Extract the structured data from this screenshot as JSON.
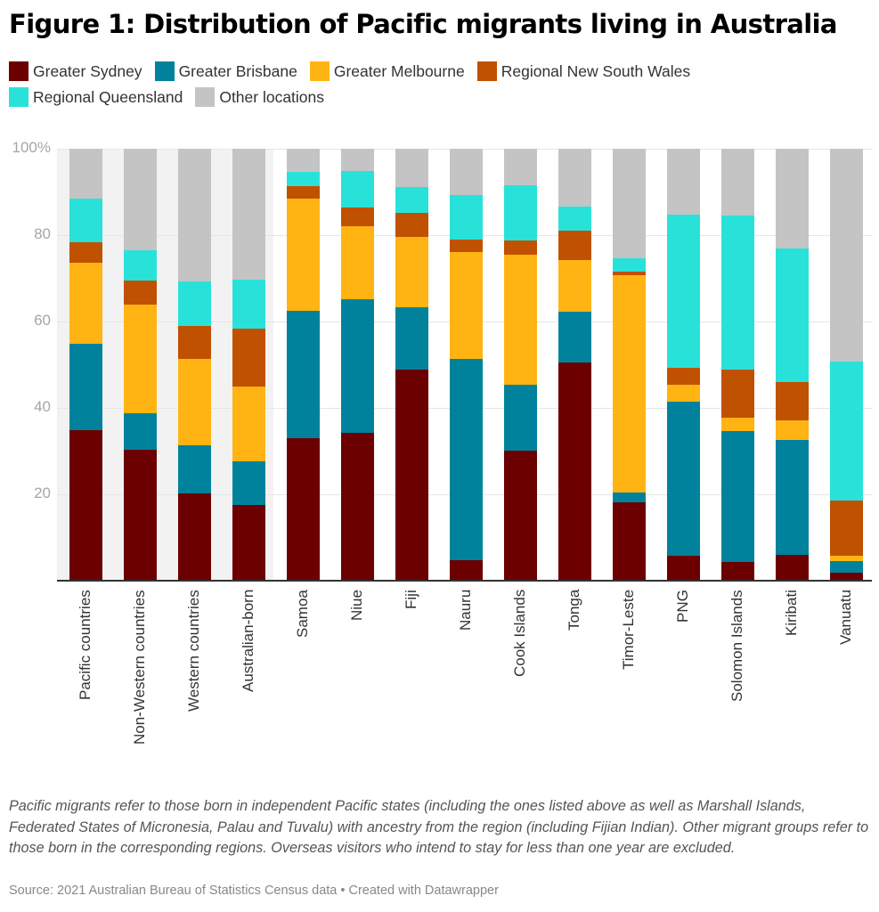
{
  "title": "Figure 1: Distribution of Pacific migrants living in Australia",
  "legend": [
    {
      "label": "Greater Sydney",
      "color": "#6c0000"
    },
    {
      "label": "Greater Brisbane",
      "color": "#00829c"
    },
    {
      "label": "Greater Melbourne",
      "color": "#ffb413"
    },
    {
      "label": "Regional New South Wales",
      "color": "#c05100"
    },
    {
      "label": "Regional Queensland",
      "color": "#28e2da"
    },
    {
      "label": "Other locations",
      "color": "#c4c4c4"
    }
  ],
  "y_axis": {
    "ticks": [
      "100%",
      "80",
      "60",
      "40",
      "20"
    ]
  },
  "footnote": "Pacific migrants refer to those born in independent Pacific states (including the ones listed above as well as Marshall Islands, Federated States of Micronesia, Palau and Tuvalu) with ancestry from the region (including Fijian Indian). Other migrant groups refer to those born in the corresponding regions. Overseas visitors who intend to stay for less than one year are excluded.",
  "source": "Source: 2021 Australian Bureau of Statistics Census data • Created with Datawrapper",
  "chart_data": {
    "type": "bar",
    "stacked": true,
    "title": "Figure 1: Distribution of Pacific migrants living in Australia",
    "xlabel": "",
    "ylabel": "",
    "ylim": [
      0,
      100
    ],
    "y_ticks": [
      0,
      20,
      40,
      60,
      80,
      100
    ],
    "grid": true,
    "legend_position": "top",
    "highlighted_categories": [
      "Pacific countries",
      "Non-Western countries",
      "Western countries",
      "Australian-born"
    ],
    "categories": [
      "Pacific countries",
      "Non-Western countries",
      "Western countries",
      "Australian-born",
      "Samoa",
      "Niue",
      "Fiji",
      "Nauru",
      "Cook Islands",
      "Tonga",
      "Timor-Leste",
      "PNG",
      "Solomon Islands",
      "Kiribati",
      "Vanuatu"
    ],
    "series": [
      {
        "name": "Greater Sydney",
        "color": "#6c0000",
        "values": [
          34.8,
          30.3,
          20.2,
          17.5,
          33.0,
          34.2,
          48.9,
          4.7,
          30.1,
          50.5,
          18.1,
          5.8,
          4.4,
          6.0,
          1.9
        ]
      },
      {
        "name": "Greater Brisbane",
        "color": "#00829c",
        "values": [
          20.0,
          8.5,
          11.1,
          10.1,
          29.5,
          31.0,
          14.4,
          46.6,
          15.3,
          11.8,
          2.3,
          35.6,
          30.2,
          26.6,
          2.6
        ]
      },
      {
        "name": "Greater Melbourne",
        "color": "#ffb413",
        "values": [
          18.8,
          25.1,
          20.0,
          17.4,
          26.0,
          16.9,
          16.3,
          24.8,
          30.1,
          11.9,
          50.3,
          4.0,
          3.1,
          4.5,
          1.3
        ]
      },
      {
        "name": "Regional New South Wales",
        "color": "#c05100",
        "values": [
          4.8,
          5.6,
          7.7,
          13.4,
          2.8,
          4.3,
          5.6,
          2.9,
          3.3,
          6.8,
          0.8,
          3.9,
          11.2,
          8.9,
          12.8
        ]
      },
      {
        "name": "Regional Queensland",
        "color": "#28e2da",
        "values": [
          10.1,
          7.0,
          10.3,
          11.3,
          3.3,
          8.4,
          5.9,
          10.3,
          12.7,
          5.6,
          3.1,
          35.4,
          35.6,
          30.9,
          32.1
        ]
      },
      {
        "name": "Other locations",
        "color": "#c4c4c4",
        "values": [
          11.5,
          23.5,
          30.7,
          30.3,
          5.4,
          5.2,
          8.9,
          10.7,
          8.5,
          13.4,
          25.4,
          15.3,
          15.5,
          23.1,
          49.3
        ]
      }
    ]
  }
}
